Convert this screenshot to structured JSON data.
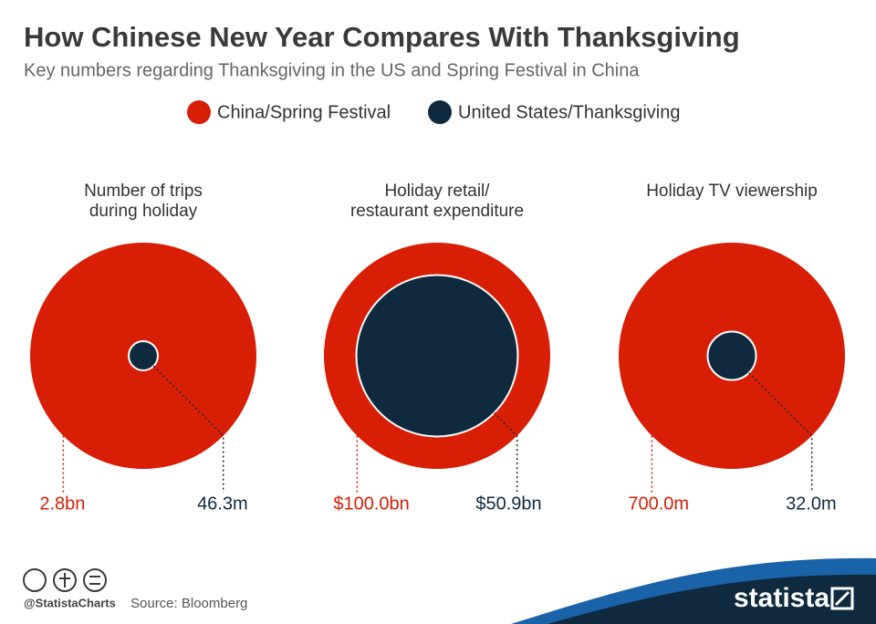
{
  "title": "How Chinese New Year Compares With Thanksgiving",
  "subtitle": "Key numbers regarding Thanksgiving in the US and Spring Festival in China",
  "chart_data": {
    "type": "bubble",
    "categories": [
      "Number of trips\nduring holiday",
      "Holiday retail/\nrestaurant expenditure",
      "Holiday TV viewership"
    ],
    "series": [
      {
        "name": "China/Spring Festival",
        "color": "#d81e05",
        "values": [
          2800000000,
          100000000000,
          700000000
        ],
        "value_labels": [
          "2.8bn",
          "$100.0bn",
          "700.0m"
        ]
      },
      {
        "name": "United States/Thanksgiving",
        "color": "#0f2a3f",
        "values": [
          46300000,
          50900000000,
          32000000
        ],
        "value_labels": [
          "46.3m",
          "$50.9bn",
          "32.0m"
        ]
      }
    ]
  },
  "footer": {
    "credit": "@StatistaCharts",
    "source": "Source: Bloomberg",
    "brand": "statista"
  }
}
